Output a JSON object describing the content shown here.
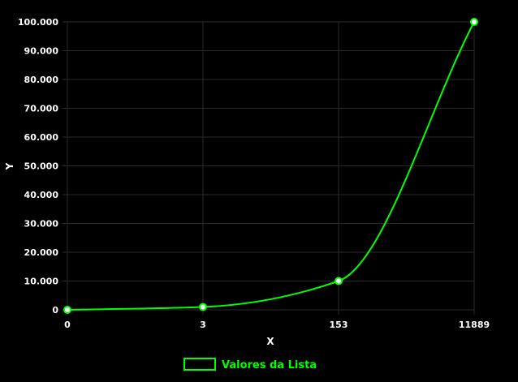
{
  "chart_data": {
    "type": "line",
    "categories": [
      "0",
      "3",
      "153",
      "11889"
    ],
    "series": [
      {
        "name": "Valores da Lista",
        "values": [
          0,
          1000,
          10000,
          100000
        ]
      }
    ],
    "xlabel": "X",
    "ylabel": "Y",
    "ylim": [
      0,
      100000
    ],
    "y_ticks": [
      "0",
      "10.000",
      "20.000",
      "30.000",
      "40.000",
      "50.000",
      "60.000",
      "70.000",
      "80.000",
      "90.000",
      "100.000"
    ],
    "grid": true,
    "legend": "bottom",
    "colors": {
      "line": "#00ff00",
      "background": "#000000",
      "grid": "#2a2a2a",
      "text": "#ffffff",
      "point_fill": "#ffffff"
    }
  }
}
